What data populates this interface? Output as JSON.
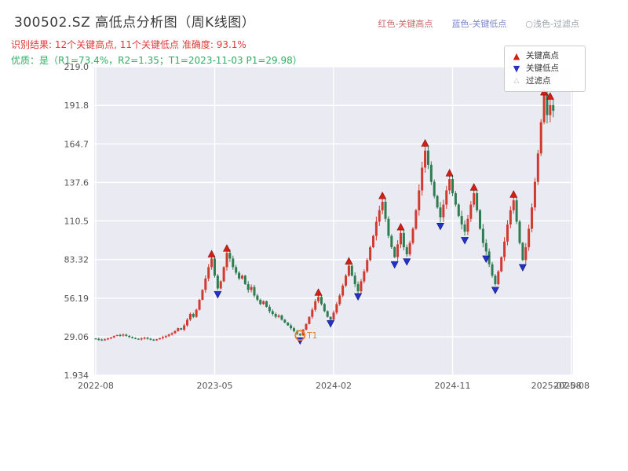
{
  "title": "300502.SZ 高低点分析图（周K线图）",
  "top_legend": {
    "high": "红色-关键高点",
    "low": "蓝色-关键低点",
    "filtered": "○浅色-过滤点"
  },
  "subtitle_result": "识别结果: 12个关键高点, 11个关键低点  准确度: 93.1%",
  "subtitle_quality": "优质：是（R1=73.4%，R2=1.35；T1=2023-11-03 P1=29.98）",
  "legend_box": {
    "items": [
      {
        "label": "关键高点",
        "marker": "triangle-up",
        "color": "#d32011"
      },
      {
        "label": "关键低点",
        "marker": "triangle-down",
        "color": "#2432c8"
      },
      {
        "label": "过滤点",
        "marker": "triangle-up-outline",
        "color": "#c9c9c9"
      }
    ]
  },
  "chart_data": {
    "type": "candlestick",
    "symbol": "300502.SZ",
    "interval": "weekly",
    "title": "300502.SZ 高低点分析图（周K线图）",
    "ylim": [
      1.934,
      219.0
    ],
    "x_total_weeks": 157,
    "first_open": 27.8,
    "y_ticks": [
      {
        "label": "1.934",
        "value": 1.934
      },
      {
        "label": "29.06",
        "value": 29.06
      },
      {
        "label": "56.19",
        "value": 56.19
      },
      {
        "label": "83.32",
        "value": 83.32
      },
      {
        "label": "110.5",
        "value": 110.5
      },
      {
        "label": "137.6",
        "value": 137.6
      },
      {
        "label": "164.7",
        "value": 164.7
      },
      {
        "label": "191.8",
        "value": 191.8
      },
      {
        "label": "219.0",
        "value": 219.0
      }
    ],
    "x_ticks": [
      {
        "label": "2022-08",
        "week": 0
      },
      {
        "label": "2023-05",
        "week": 39
      },
      {
        "label": "2024-02",
        "week": 78
      },
      {
        "label": "2024-11",
        "week": 117
      },
      {
        "label": "2025-08",
        "week": 156
      }
    ],
    "x_end_label": {
      "label": "2025-07-08",
      "week": 151
    },
    "closes": [
      27.5,
      27.0,
      26.8,
      27.2,
      27.8,
      28.5,
      29.5,
      30.2,
      29.8,
      30.5,
      29.6,
      28.8,
      28.2,
      27.6,
      27.2,
      27.8,
      28.3,
      27.6,
      27.0,
      26.5,
      27.2,
      28.0,
      28.8,
      29.5,
      30.5,
      31.5,
      33.0,
      35.0,
      34.0,
      37.0,
      41.0,
      45.0,
      43.0,
      48.0,
      55.0,
      62.0,
      70.0,
      78.0,
      84.0,
      72.0,
      63.0,
      68.0,
      78.0,
      88.0,
      84.0,
      78.0,
      74.0,
      70.0,
      72.0,
      66.0,
      62.0,
      64.0,
      58.0,
      55.0,
      52.0,
      54.0,
      50.0,
      47.0,
      45.0,
      43.0,
      44.0,
      41.0,
      39.0,
      37.0,
      35.0,
      33.0,
      31.0,
      30.0,
      34.0,
      38.0,
      43.0,
      48.0,
      54.0,
      57.0,
      52.0,
      47.0,
      43.0,
      41.0,
      46.0,
      52.0,
      58.0,
      65.0,
      72.0,
      79.0,
      72.0,
      66.0,
      61.0,
      68.0,
      75.0,
      83.0,
      92.0,
      100.0,
      110.0,
      118.0,
      124.0,
      112.0,
      100.0,
      92.0,
      85.0,
      94.0,
      102.0,
      92.0,
      87.0,
      95.0,
      105.0,
      118.0,
      132.0,
      148.0,
      160.0,
      150.0,
      138.0,
      128.0,
      120.0,
      113.0,
      122.0,
      132.0,
      140.0,
      130.0,
      122.0,
      114.0,
      108.0,
      103.0,
      112.0,
      122.0,
      130.0,
      118.0,
      105.0,
      95.0,
      89.0,
      80.0,
      72.0,
      66.0,
      75.0,
      85.0,
      96.0,
      108.0,
      118.0,
      125.0,
      110.0,
      95.0,
      83.0,
      92.0,
      105.0,
      120.0,
      138.0,
      158.0,
      180.0,
      200.0,
      185.0,
      192.0,
      188.0
    ],
    "key_highs": [
      {
        "week": 38,
        "price": 87
      },
      {
        "week": 43,
        "price": 91
      },
      {
        "week": 73,
        "price": 60
      },
      {
        "week": 83,
        "price": 82
      },
      {
        "week": 94,
        "price": 128
      },
      {
        "week": 100,
        "price": 106
      },
      {
        "week": 108,
        "price": 165
      },
      {
        "week": 116,
        "price": 144
      },
      {
        "week": 124,
        "price": 134
      },
      {
        "week": 137,
        "price": 129
      },
      {
        "week": 147,
        "price": 201
      },
      {
        "week": 149,
        "price": 198
      }
    ],
    "key_lows": [
      {
        "week": 40,
        "price": 59
      },
      {
        "week": 67,
        "price": 26.5
      },
      {
        "week": 77,
        "price": 38.5
      },
      {
        "week": 86,
        "price": 57.5
      },
      {
        "week": 98,
        "price": 80
      },
      {
        "week": 102,
        "price": 82
      },
      {
        "week": 113,
        "price": 107
      },
      {
        "week": 121,
        "price": 97
      },
      {
        "week": 128,
        "price": 84
      },
      {
        "week": 131,
        "price": 62
      },
      {
        "week": 140,
        "price": 78
      }
    ],
    "t1": {
      "label": "T1",
      "date": "2023-11-03",
      "price": 29.98,
      "week": 67
    },
    "counts": {
      "key_highs": 12,
      "key_lows": 11,
      "accuracy": "93.1%"
    },
    "quality": {
      "is_quality": "是",
      "R1": "73.4%",
      "R2": "1.35",
      "T1": "2023-11-03",
      "P1": "29.98"
    },
    "colors": {
      "up": "#cf3b2f",
      "down": "#2e7d52",
      "plot_bg": "#eaeaf2",
      "grid": "#ffffff",
      "high_marker": "#d32011",
      "low_marker": "#2432c8",
      "filtered_marker": "#c9c9c9",
      "t1": "#e67e22",
      "tick_text": "#555555"
    }
  }
}
